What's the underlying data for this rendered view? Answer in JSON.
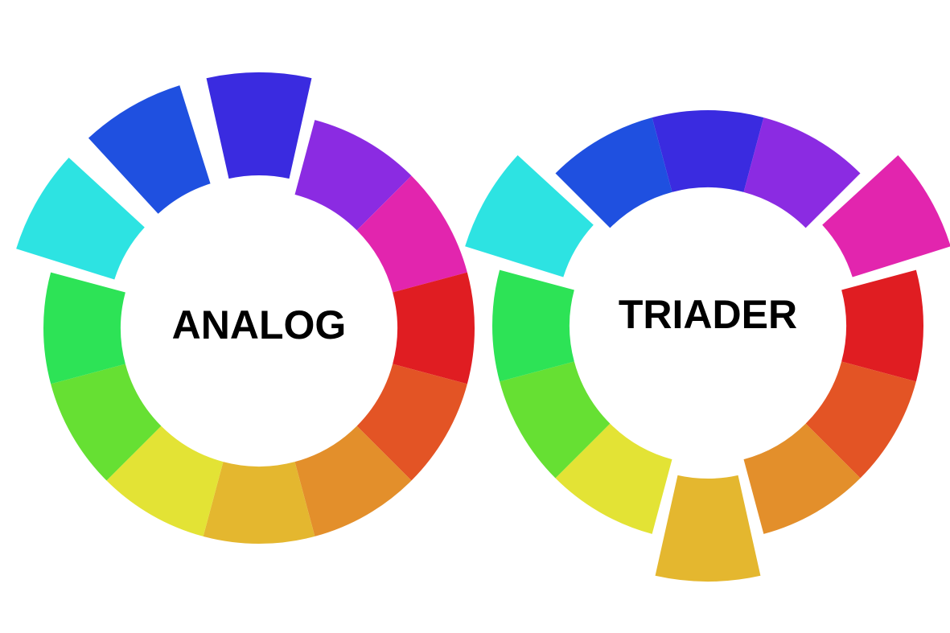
{
  "wheels": [
    {
      "label": "ANALOG",
      "highlighted_segments": [
        "cyan",
        "blue",
        "indigo"
      ],
      "segments": [
        {
          "name": "indigo",
          "color": "#3A2BE0"
        },
        {
          "name": "violet",
          "color": "#8B2BE2"
        },
        {
          "name": "magenta",
          "color": "#E225AE"
        },
        {
          "name": "red",
          "color": "#E01D22"
        },
        {
          "name": "red-orange",
          "color": "#E35425"
        },
        {
          "name": "orange",
          "color": "#E38F2B"
        },
        {
          "name": "yellow-orange",
          "color": "#E4B72F"
        },
        {
          "name": "yellow",
          "color": "#E3E335"
        },
        {
          "name": "yellow-green",
          "color": "#66E033"
        },
        {
          "name": "green",
          "color": "#2DE356"
        },
        {
          "name": "cyan",
          "color": "#2DE3E2"
        },
        {
          "name": "blue",
          "color": "#1F50E0"
        }
      ]
    },
    {
      "label": "TRIADER",
      "highlighted_segments": [
        "magenta",
        "yellow-orange",
        "cyan"
      ],
      "segments": [
        {
          "name": "indigo",
          "color": "#3A2BE0"
        },
        {
          "name": "violet",
          "color": "#8B2BE2"
        },
        {
          "name": "magenta",
          "color": "#E225AE"
        },
        {
          "name": "red",
          "color": "#E01D22"
        },
        {
          "name": "red-orange",
          "color": "#E35425"
        },
        {
          "name": "orange",
          "color": "#E38F2B"
        },
        {
          "name": "yellow-orange",
          "color": "#E4B72F"
        },
        {
          "name": "yellow",
          "color": "#E3E335"
        },
        {
          "name": "yellow-green",
          "color": "#66E033"
        },
        {
          "name": "green",
          "color": "#2DE356"
        },
        {
          "name": "cyan",
          "color": "#2DE3E2"
        },
        {
          "name": "blue",
          "color": "#1F50E0"
        }
      ]
    }
  ]
}
